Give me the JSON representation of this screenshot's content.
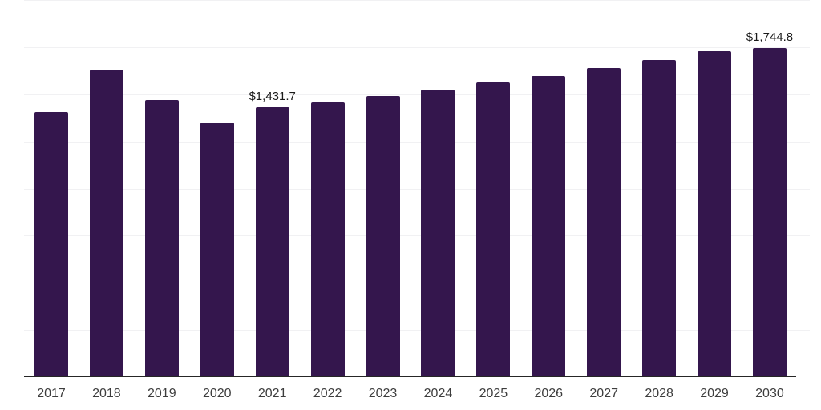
{
  "chart_data": {
    "type": "bar",
    "title": "",
    "xlabel": "",
    "ylabel": "",
    "categories": [
      "2017",
      "2018",
      "2019",
      "2020",
      "2021",
      "2022",
      "2023",
      "2024",
      "2025",
      "2026",
      "2027",
      "2028",
      "2029",
      "2030"
    ],
    "values": [
      1407,
      1631,
      1469,
      1350,
      1431.7,
      1456,
      1491,
      1525,
      1561,
      1596,
      1640,
      1683,
      1727,
      1744.8
    ],
    "value_labels": {
      "2021": "$1,431.7",
      "2030": "$1,744.8"
    },
    "ylim": [
      0,
      2000
    ],
    "gridline_step": 250,
    "grid": true,
    "legend": false,
    "colors": {
      "bar": "#34164d",
      "axis_line": "#262626",
      "gridline": "#f1f1f3",
      "tick_label": "#3d3d3d",
      "value_label": "#1a1a1a",
      "background": "#ffffff"
    }
  }
}
